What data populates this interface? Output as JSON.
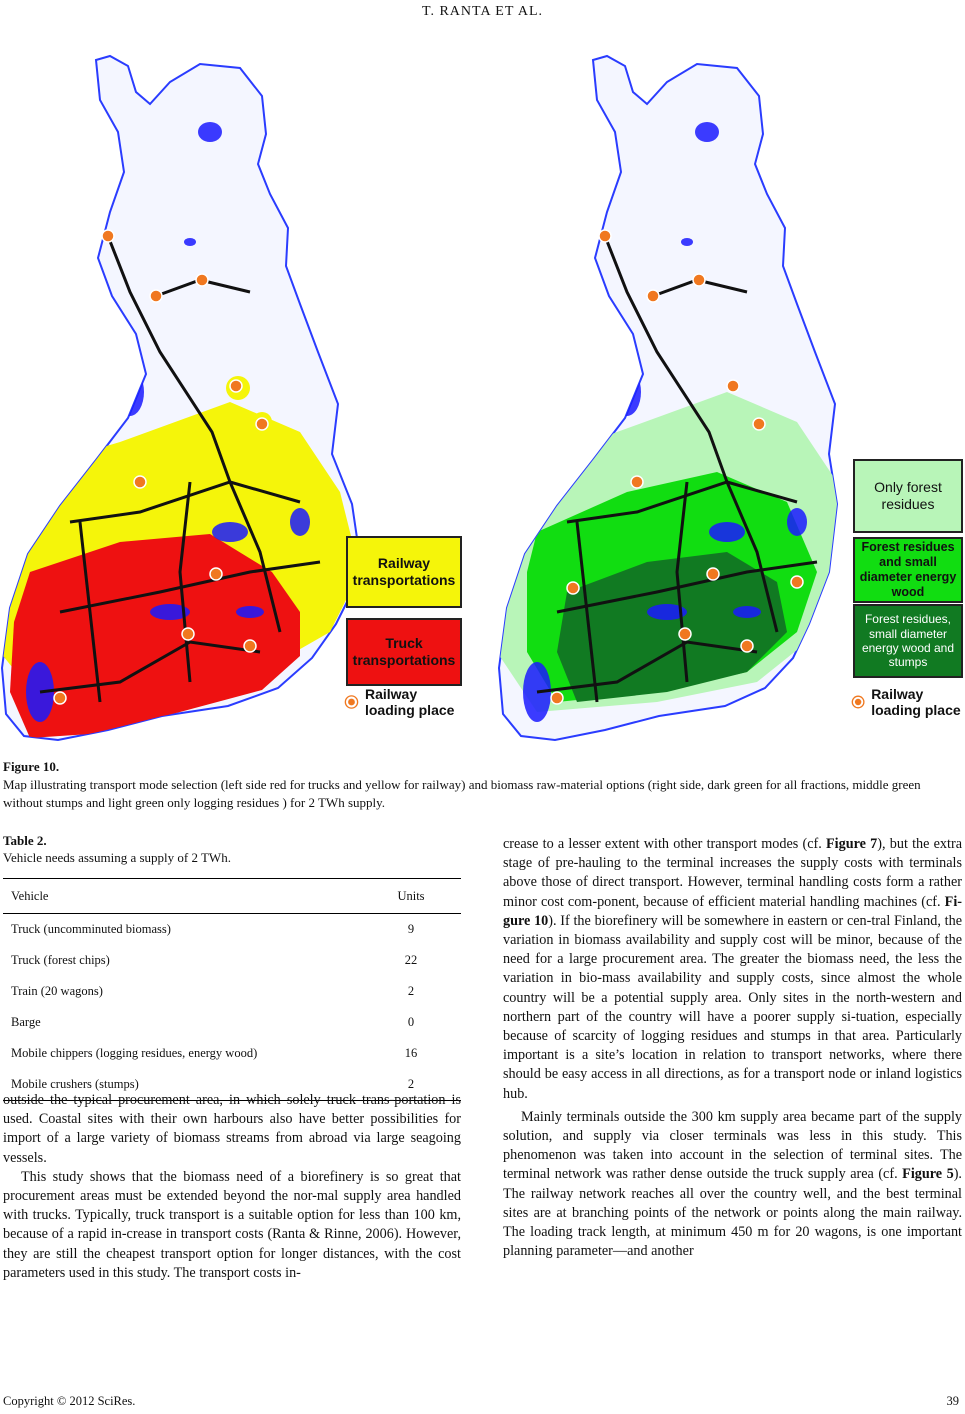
{
  "header": {
    "running_title": "T. RANTA    ET    AL."
  },
  "figure": {
    "label": "Figure 10.",
    "caption": "Map illustrating transport mode selection (left side red for trucks and yellow for railway) and biomass raw-material options (right side, dark green for all fractions, middle green without stumps and light green only logging residues ) for 2 TWh supply.",
    "left_legend": {
      "railway": "Railway transportations",
      "truck": "Truck transportations",
      "loading": "Railway loading place"
    },
    "right_legend": {
      "light": "Only forest residues",
      "middle": "Forest residues and small diameter energy wood",
      "dark": "Forest residues, small diameter energy wood and stumps",
      "loading": "Railway loading place"
    },
    "colors": {
      "truck": "#ee1111",
      "railway": "#f5f50a",
      "light_green": "#b8f5b8",
      "middle_green": "#11dd11",
      "dark_green": "#117a22",
      "water": "#1a1aff",
      "loading": "#f07820"
    }
  },
  "table": {
    "label": "Table 2.",
    "title": "Vehicle needs assuming a supply of 2 TWh.",
    "headers": [
      "Vehicle",
      "Units"
    ],
    "rows": [
      [
        "Truck (uncomminuted biomass)",
        "9"
      ],
      [
        "Truck (forest chips)",
        "22"
      ],
      [
        "Train (20 wagons)",
        "2"
      ],
      [
        "Barge",
        "0"
      ],
      [
        "Mobile chippers (logging residues, energy wood)",
        "16"
      ],
      [
        "Mobile crushers (stumps)",
        "2"
      ]
    ]
  },
  "left_column": {
    "p1": "outside the typical procurement area, in which solely truck trans-portation is used. Coastal sites with their own harbours also have better possibilities for import of a large variety of biomass streams from abroad via large seagoing vessels.",
    "p2": "This study shows that the biomass need of a biorefinery is so great that procurement areas must be extended beyond the nor-mal supply area handled with trucks. Typically, truck transport is a suitable option for less than 100 km, because of a rapid in-crease in transport costs (Ranta & Rinne, 2006). However, they are still the cheapest transport option for longer distances, with the cost parameters used in this study. The transport costs in-"
  },
  "right_column": {
    "p1_a": "crease to a lesser extent with other transport modes (cf. ",
    "p1_ref1": "Figure 7",
    "p1_b": "), but the extra stage of pre-hauling to the terminal increases the supply costs with terminals above those of direct transport. However, terminal handling costs form a rather minor cost com-ponent, because of efficient material handling machines (cf. ",
    "p1_ref2": "Fi-gure 10",
    "p1_c": "). If the biorefinery will be somewhere in eastern or cen-tral Finland, the variation in biomass availability and supply cost will be minor, because of the need for a large procurement area. The greater the biomass need, the less the variation in bio-mass availability and supply costs, since almost the whole country will be a potential supply area. Only sites in the north-western and northern part of the country will have a poorer supply si-tuation, especially because of scarcity of logging residues and stumps in that area. Particularly important is a site’s location in relation to transport networks, where there should be easy access in all directions, as for a transport node or inland logistics hub.",
    "p2_a": "Mainly terminals outside the 300 km supply area became part of the supply solution, and supply via closer terminals was less in this study. This phenomenon was taken into account in the selection of terminal sites. The terminal network was rather dense outside the truck supply area (cf. ",
    "p2_ref": "Figure 5",
    "p2_b": "). The railway network reaches all over the country well, and the best terminal sites are at branching points of the network or points along the main railway. The loading track length, at minimum 450 m for 20 wagons, is one important planning parameter—and another"
  },
  "footer": {
    "copyright": "Copyright © 2012 SciRes.",
    "page": "39"
  }
}
